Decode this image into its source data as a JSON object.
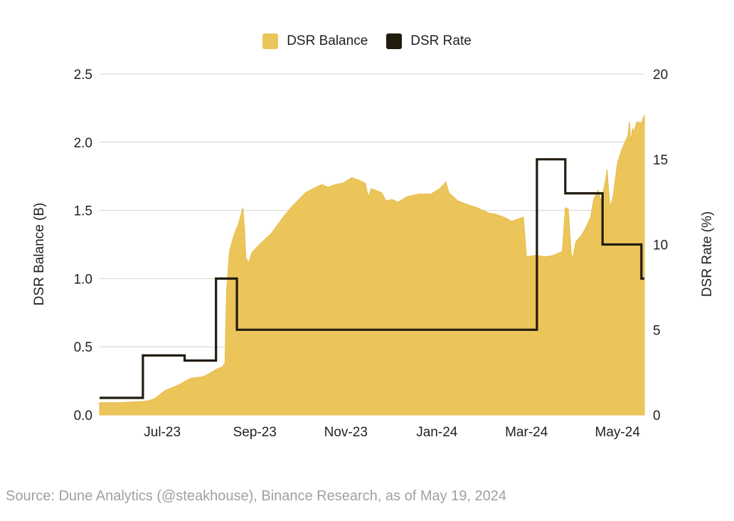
{
  "legend": [
    {
      "label": "DSR Balance",
      "color": "#ECC55A"
    },
    {
      "label": "DSR Rate",
      "color": "#221C0F"
    }
  ],
  "source": "Source: Dune Analytics (@steakhouse), Binance Research, as of May 19, 2024",
  "chart_data": {
    "type": "area",
    "xlabel": "",
    "ylabel_left": "DSR Balance (B)",
    "ylabel_right": "DSR Rate (%)",
    "x_range": [
      "2023-05-20",
      "2024-05-19"
    ],
    "x_ticks": [
      {
        "label": "Jul-23",
        "date": "2023-07-01"
      },
      {
        "label": "Sep-23",
        "date": "2023-09-01"
      },
      {
        "label": "Nov-23",
        "date": "2023-11-01"
      },
      {
        "label": "Jan-24",
        "date": "2024-01-01"
      },
      {
        "label": "Mar-24",
        "date": "2024-03-01"
      },
      {
        "label": "May-24",
        "date": "2024-05-01"
      }
    ],
    "y_left": {
      "min": 0,
      "max": 2.5,
      "ticks": [
        "0.0",
        "0.5",
        "1.0",
        "1.5",
        "2.0",
        "2.5"
      ]
    },
    "y_right": {
      "min": 0,
      "max": 20,
      "ticks": [
        "0",
        "5",
        "10",
        "15",
        "20"
      ]
    },
    "grid": true,
    "series": [
      {
        "name": "DSR Balance",
        "type": "area",
        "axis": "left",
        "color": "#ECC55A",
        "points": [
          [
            "2023-05-20",
            0.09
          ],
          [
            "2023-06-01",
            0.09
          ],
          [
            "2023-06-20",
            0.1
          ],
          [
            "2023-06-26",
            0.12
          ],
          [
            "2023-07-03",
            0.18
          ],
          [
            "2023-07-12",
            0.22
          ],
          [
            "2023-07-20",
            0.27
          ],
          [
            "2023-07-28",
            0.28
          ],
          [
            "2023-08-01",
            0.3
          ],
          [
            "2023-08-04",
            0.32
          ],
          [
            "2023-08-07",
            0.34
          ],
          [
            "2023-08-10",
            0.35
          ],
          [
            "2023-08-12",
            0.38
          ],
          [
            "2023-08-13",
            0.9
          ],
          [
            "2023-08-15",
            1.2
          ],
          [
            "2023-08-18",
            1.32
          ],
          [
            "2023-08-21",
            1.4
          ],
          [
            "2023-08-24",
            1.52
          ],
          [
            "2023-08-25",
            1.38
          ],
          [
            "2023-08-26",
            1.15
          ],
          [
            "2023-08-28",
            1.12
          ],
          [
            "2023-08-30",
            1.19
          ],
          [
            "2023-09-05",
            1.26
          ],
          [
            "2023-09-12",
            1.33
          ],
          [
            "2023-09-20",
            1.45
          ],
          [
            "2023-09-26",
            1.53
          ],
          [
            "2023-10-05",
            1.63
          ],
          [
            "2023-10-10",
            1.66
          ],
          [
            "2023-10-16",
            1.69
          ],
          [
            "2023-10-20",
            1.67
          ],
          [
            "2023-10-25",
            1.69
          ],
          [
            "2023-10-30",
            1.7
          ],
          [
            "2023-11-05",
            1.74
          ],
          [
            "2023-11-10",
            1.72
          ],
          [
            "2023-11-14",
            1.7
          ],
          [
            "2023-11-16",
            1.6
          ],
          [
            "2023-11-18",
            1.66
          ],
          [
            "2023-11-25",
            1.63
          ],
          [
            "2023-11-28",
            1.57
          ],
          [
            "2023-12-02",
            1.58
          ],
          [
            "2023-12-06",
            1.56
          ],
          [
            "2023-12-12",
            1.6
          ],
          [
            "2023-12-20",
            1.62
          ],
          [
            "2023-12-28",
            1.62
          ],
          [
            "2024-01-03",
            1.66
          ],
          [
            "2024-01-07",
            1.71
          ],
          [
            "2024-01-09",
            1.63
          ],
          [
            "2024-01-15",
            1.57
          ],
          [
            "2024-01-22",
            1.54
          ],
          [
            "2024-01-28",
            1.52
          ],
          [
            "2024-02-05",
            1.48
          ],
          [
            "2024-02-10",
            1.47
          ],
          [
            "2024-02-15",
            1.45
          ],
          [
            "2024-02-20",
            1.42
          ],
          [
            "2024-02-28",
            1.45
          ],
          [
            "2024-03-01",
            1.16
          ],
          [
            "2024-03-07",
            1.17
          ],
          [
            "2024-03-14",
            1.16
          ],
          [
            "2024-03-19",
            1.17
          ],
          [
            "2024-03-25",
            1.2
          ],
          [
            "2024-03-27",
            1.52
          ],
          [
            "2024-03-29",
            1.51
          ],
          [
            "2024-03-31",
            1.18
          ],
          [
            "2024-04-01",
            1.15
          ],
          [
            "2024-04-03",
            1.27
          ],
          [
            "2024-04-07",
            1.32
          ],
          [
            "2024-04-10",
            1.38
          ],
          [
            "2024-04-13",
            1.45
          ],
          [
            "2024-04-15",
            1.58
          ],
          [
            "2024-04-18",
            1.65
          ],
          [
            "2024-04-20",
            1.57
          ],
          [
            "2024-04-23",
            1.72
          ],
          [
            "2024-04-24",
            1.8
          ],
          [
            "2024-04-26",
            1.52
          ],
          [
            "2024-04-28",
            1.6
          ],
          [
            "2024-05-01",
            1.85
          ],
          [
            "2024-05-04",
            1.95
          ],
          [
            "2024-05-06",
            2.0
          ],
          [
            "2024-05-08",
            2.05
          ],
          [
            "2024-05-09",
            2.15
          ],
          [
            "2024-05-10",
            2.0
          ],
          [
            "2024-05-11",
            2.1
          ],
          [
            "2024-05-12",
            2.08
          ],
          [
            "2024-05-14",
            2.15
          ],
          [
            "2024-05-17",
            2.14
          ],
          [
            "2024-05-19",
            2.2
          ]
        ]
      },
      {
        "name": "DSR Rate",
        "type": "step",
        "axis": "right",
        "color": "#221C0F",
        "points": [
          [
            "2023-05-20",
            1.0
          ],
          [
            "2023-06-18",
            3.49
          ],
          [
            "2023-07-16",
            3.19
          ],
          [
            "2023-08-06",
            8.0
          ],
          [
            "2023-08-20",
            5.0
          ],
          [
            "2024-03-08",
            15.0
          ],
          [
            "2024-03-27",
            13.0
          ],
          [
            "2024-04-21",
            10.0
          ],
          [
            "2024-05-17",
            8.0
          ]
        ]
      }
    ]
  }
}
